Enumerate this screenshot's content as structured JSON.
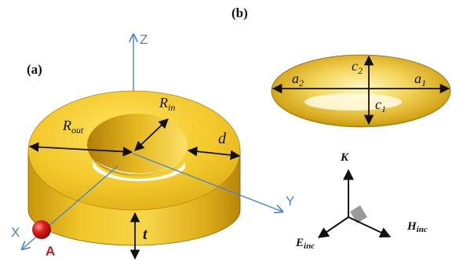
{
  "panels": {
    "a": {
      "label": "(a)"
    },
    "b": {
      "label": "(b)"
    }
  },
  "ring_labels": {
    "r_out": "R",
    "r_out_sub": "out",
    "r_in": "R",
    "r_in_sub": "in",
    "d": "d",
    "t": "t"
  },
  "axes": {
    "x": "X",
    "y": "Y",
    "z": "Z"
  },
  "point_label": "A",
  "ellipsoid_labels": {
    "a1": "a",
    "a1_sub": "1",
    "a2": "a",
    "a2_sub": "2",
    "c1": "c",
    "c1_sub": "1",
    "c2": "c",
    "c2_sub": "2"
  },
  "field_labels": {
    "k": "K",
    "h": "H",
    "h_sub": "inc",
    "e": "E",
    "e_sub": "inc"
  },
  "colors": {
    "gold_light": "#fff2a0",
    "gold_mid": "#e9bd1e",
    "gold_dark": "#a87a05",
    "axis_blue": "#4a86c8",
    "marker_red": "#d81818",
    "label_red": "#d01a1a"
  }
}
